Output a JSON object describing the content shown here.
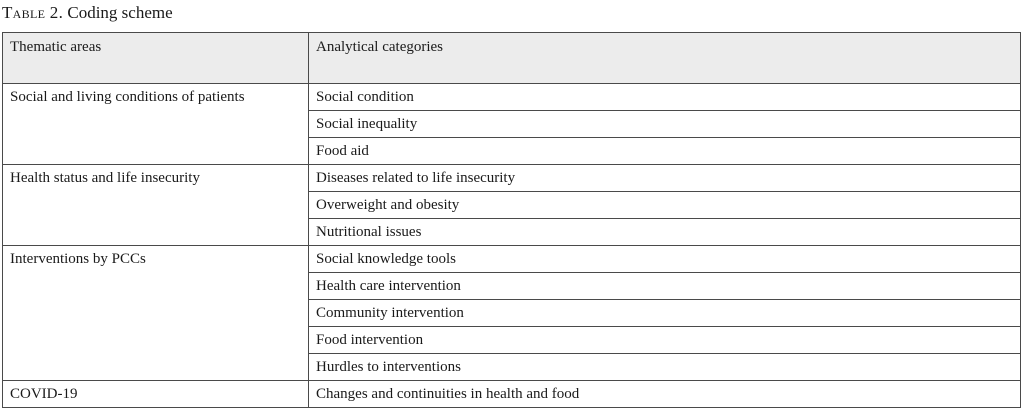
{
  "caption": {
    "label": "Table 2.",
    "title": "Coding scheme"
  },
  "table": {
    "headers": [
      "Thematic areas",
      "Analytical categories"
    ],
    "groups": [
      {
        "area": "Social and living conditions of patients",
        "categories": [
          "Social condition",
          "Social inequality",
          "Food aid"
        ]
      },
      {
        "area": "Health status and life insecurity",
        "categories": [
          "Diseases related to life insecurity",
          "Overweight and obesity",
          "Nutritional issues"
        ]
      },
      {
        "area": "Interventions by PCCs",
        "categories": [
          "Social knowledge tools",
          "Health care intervention",
          "Community intervention",
          "Food intervention",
          "Hurdles to interventions"
        ]
      },
      {
        "area": "COVID-19",
        "categories": [
          "Changes and continuities in health and food"
        ]
      }
    ]
  }
}
